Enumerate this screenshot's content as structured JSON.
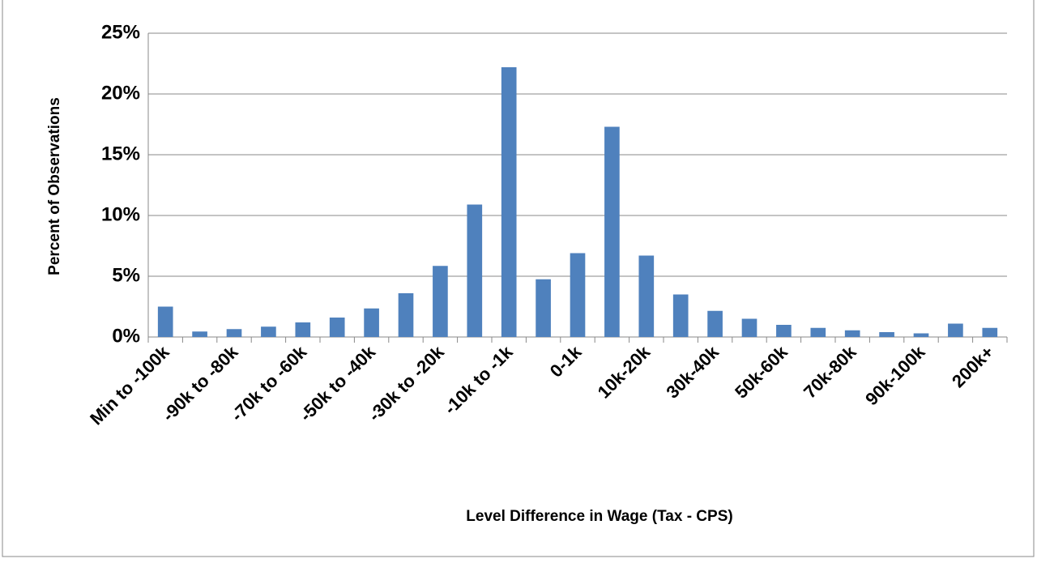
{
  "chart_data": {
    "type": "bar",
    "x_label": "Level Difference in Wage (Tax - CPS)",
    "y_label": "Percent of Observations",
    "categories": [
      "Min to -100k",
      null,
      "-90k to -80k",
      null,
      "-70k to -60k",
      null,
      "-50k to -40k",
      null,
      "-30k to -20k",
      null,
      "-10k to -1k",
      null,
      "0-1k",
      null,
      "10k-20k",
      null,
      "30k-40k",
      null,
      "50k-60k",
      null,
      "70k-80k",
      null,
      "90k-100k",
      null,
      "200k+"
    ],
    "values": [
      2.5,
      0.45,
      0.65,
      0.85,
      1.2,
      1.6,
      2.35,
      3.6,
      5.85,
      10.9,
      22.2,
      4.75,
      6.9,
      17.3,
      6.7,
      3.5,
      2.15,
      1.5,
      1.0,
      0.75,
      0.55,
      0.4,
      0.3,
      1.1,
      0.75
    ],
    "color": "#4f81bd",
    "ylim": [
      0,
      25
    ],
    "yticks": [
      {
        "value": 0,
        "label": "0%"
      },
      {
        "value": 5,
        "label": "5%"
      },
      {
        "value": 10,
        "label": "10%"
      },
      {
        "value": 15,
        "label": "15%"
      },
      {
        "value": 20,
        "label": "20%"
      },
      {
        "value": 25,
        "label": "25%"
      }
    ],
    "grid": true
  }
}
